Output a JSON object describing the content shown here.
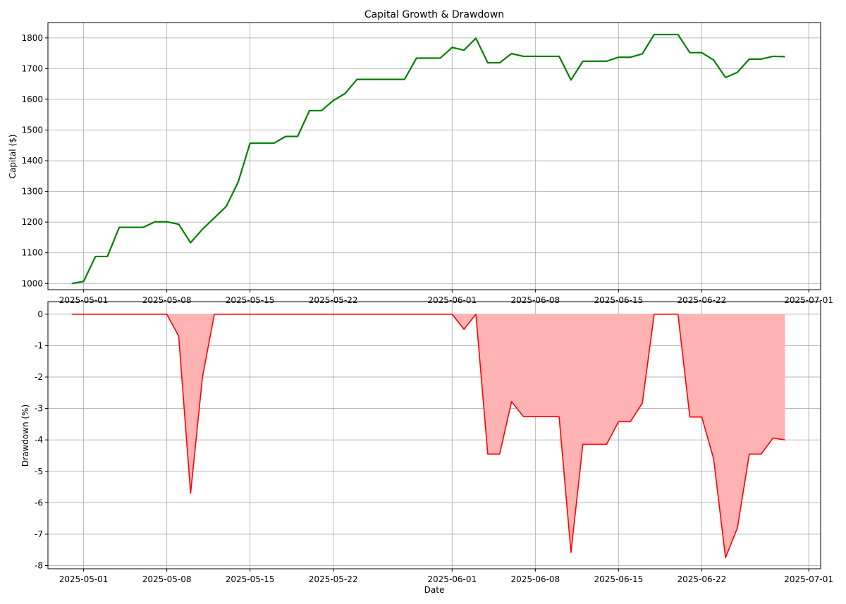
{
  "chart_data": [
    {
      "type": "line",
      "title": "Capital Growth & Drawdown",
      "xlabel": "",
      "ylabel": "Capital ($)",
      "ylim": [
        980,
        1850
      ],
      "yticks": [
        1000,
        1100,
        1200,
        1300,
        1400,
        1500,
        1600,
        1700,
        1800
      ],
      "xlim": [
        "2025-04-28",
        "2025-07-02"
      ],
      "xticks": [
        "2025-05-01",
        "2025-05-08",
        "2025-05-15",
        "2025-05-22",
        "2025-06-01",
        "2025-06-08",
        "2025-06-15",
        "2025-06-22",
        "2025-07-01"
      ],
      "grid": true,
      "line_color": "#008000",
      "x": [
        "2025-04-30",
        "2025-05-01",
        "2025-05-02",
        "2025-05-03",
        "2025-05-04",
        "2025-05-05",
        "2025-05-06",
        "2025-05-07",
        "2025-05-08",
        "2025-05-09",
        "2025-05-10",
        "2025-05-11",
        "2025-05-12",
        "2025-05-13",
        "2025-05-14",
        "2025-05-15",
        "2025-05-16",
        "2025-05-17",
        "2025-05-18",
        "2025-05-19",
        "2025-05-20",
        "2025-05-21",
        "2025-05-22",
        "2025-05-23",
        "2025-05-24",
        "2025-05-25",
        "2025-05-26",
        "2025-05-27",
        "2025-05-28",
        "2025-05-29",
        "2025-05-30",
        "2025-05-31",
        "2025-06-01",
        "2025-06-02",
        "2025-06-03",
        "2025-06-04",
        "2025-06-05",
        "2025-06-06",
        "2025-06-07",
        "2025-06-08",
        "2025-06-09",
        "2025-06-10",
        "2025-06-11",
        "2025-06-12",
        "2025-06-13",
        "2025-06-14",
        "2025-06-15",
        "2025-06-16",
        "2025-06-17",
        "2025-06-18",
        "2025-06-19",
        "2025-06-20",
        "2025-06-21",
        "2025-06-22",
        "2025-06-23",
        "2025-06-24",
        "2025-06-25",
        "2025-06-26",
        "2025-06-27",
        "2025-06-28",
        "2025-06-29"
      ],
      "series": [
        {
          "values": [
            1000,
            1007,
            1088,
            1088,
            1183,
            1183,
            1183,
            1201,
            1201,
            1193,
            1133,
            1177,
            1214,
            1251,
            1330,
            1457,
            1457,
            1457,
            1479,
            1479,
            1563,
            1563,
            1596,
            1619,
            1665,
            1665,
            1665,
            1665,
            1665,
            1734,
            1734,
            1734,
            1769,
            1760,
            1799,
            1719,
            1719,
            1749,
            1740,
            1740,
            1740,
            1740,
            1663,
            1724,
            1724,
            1724,
            1737,
            1737,
            1748,
            1811,
            1811,
            1811,
            1752,
            1752,
            1728,
            1671,
            1688,
            1731,
            1731,
            1740,
            1739
          ]
        }
      ]
    },
    {
      "type": "area",
      "title": "",
      "xlabel": "Date",
      "ylabel": "Drawdown (%)",
      "ylim": [
        -8.1,
        0.4
      ],
      "yticks": [
        0,
        -1,
        -2,
        -3,
        -4,
        -5,
        -6,
        -7,
        -8
      ],
      "xlim": [
        "2025-04-28",
        "2025-07-02"
      ],
      "xticks": [
        "2025-05-01",
        "2025-05-08",
        "2025-05-15",
        "2025-05-22",
        "2025-06-01",
        "2025-06-08",
        "2025-06-15",
        "2025-06-22",
        "2025-07-01"
      ],
      "grid": true,
      "line_color": "#ff0000",
      "fill_color": "#ffb3b3",
      "x": [
        "2025-04-30",
        "2025-05-01",
        "2025-05-02",
        "2025-05-03",
        "2025-05-04",
        "2025-05-05",
        "2025-05-06",
        "2025-05-07",
        "2025-05-08",
        "2025-05-09",
        "2025-05-10",
        "2025-05-11",
        "2025-05-12",
        "2025-05-13",
        "2025-05-14",
        "2025-05-15",
        "2025-05-16",
        "2025-05-17",
        "2025-05-18",
        "2025-05-19",
        "2025-05-20",
        "2025-05-21",
        "2025-05-22",
        "2025-05-23",
        "2025-05-24",
        "2025-05-25",
        "2025-05-26",
        "2025-05-27",
        "2025-05-28",
        "2025-05-29",
        "2025-05-30",
        "2025-05-31",
        "2025-06-01",
        "2025-06-02",
        "2025-06-03",
        "2025-06-04",
        "2025-06-05",
        "2025-06-06",
        "2025-06-07",
        "2025-06-08",
        "2025-06-09",
        "2025-06-10",
        "2025-06-11",
        "2025-06-12",
        "2025-06-13",
        "2025-06-14",
        "2025-06-15",
        "2025-06-16",
        "2025-06-17",
        "2025-06-18",
        "2025-06-19",
        "2025-06-20",
        "2025-06-21",
        "2025-06-22",
        "2025-06-23",
        "2025-06-24",
        "2025-06-25",
        "2025-06-26",
        "2025-06-27",
        "2025-06-28",
        "2025-06-29"
      ],
      "series": [
        {
          "values": [
            0,
            0,
            0,
            0,
            0,
            0,
            0,
            0,
            0,
            -0.7,
            -5.7,
            -2.0,
            0,
            0,
            0,
            0,
            0,
            0,
            0,
            0,
            0,
            0,
            0,
            0,
            0,
            0,
            0,
            0,
            0,
            0,
            0,
            0,
            0,
            -0.48,
            0,
            -4.45,
            -4.45,
            -2.78,
            -3.26,
            -3.26,
            -3.26,
            -3.26,
            -7.58,
            -4.14,
            -4.14,
            -4.14,
            -3.42,
            -3.42,
            -2.83,
            0,
            0,
            0,
            -3.27,
            -3.27,
            -4.6,
            -7.75,
            -6.8,
            -4.45,
            -4.45,
            -3.94,
            -4.0
          ]
        }
      ]
    }
  ]
}
